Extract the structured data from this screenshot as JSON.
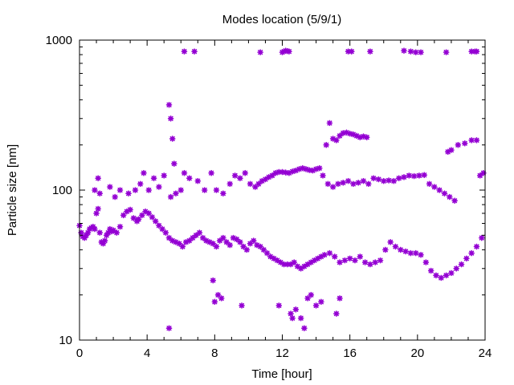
{
  "chart_data": {
    "type": "scatter",
    "title": "Modes location (5/9/1)",
    "xlabel": "Time [hour]",
    "ylabel": "Particle size [nm]",
    "xlim": [
      0,
      24
    ],
    "ylim": [
      10,
      1000
    ],
    "yscale": "log",
    "xticks": [
      0,
      4,
      8,
      12,
      16,
      20,
      24
    ],
    "yticks": [
      10,
      100,
      1000
    ],
    "yticklabels": [
      "10",
      "100",
      "1000"
    ],
    "grid": false,
    "legend": "none",
    "marker": "star",
    "marker_color": "#9400d3",
    "series": [
      {
        "x": [
          0.0,
          0.1,
          0.2,
          0.3,
          0.4,
          0.5,
          0.6,
          0.7,
          0.8,
          0.9,
          1.0,
          1.1,
          1.2,
          1.3,
          1.4,
          1.5,
          1.6,
          1.7,
          1.8,
          1.9,
          2.0,
          2.2,
          2.4,
          2.6,
          2.8,
          3.0,
          3.2,
          3.4,
          3.5,
          3.7,
          3.9,
          4.1,
          4.3,
          4.5,
          4.7,
          4.9,
          5.1,
          5.3,
          5.5,
          5.7,
          5.9,
          6.1,
          6.3,
          6.5,
          6.7,
          6.9,
          7.1,
          7.3,
          7.5,
          7.7,
          7.9,
          8.1,
          8.3,
          8.5,
          8.7,
          8.9,
          9.1,
          9.3,
          9.5,
          9.7,
          9.9,
          10.1,
          10.3,
          10.5,
          10.7,
          10.9,
          11.1,
          11.3,
          11.5,
          11.7,
          11.9,
          12.1,
          12.3,
          12.5,
          12.7,
          12.9,
          13.1,
          13.3,
          13.5,
          13.7,
          13.9,
          14.1,
          14.3,
          14.5,
          14.8,
          15.1,
          15.4,
          15.7,
          16.0,
          16.3,
          16.6,
          16.9,
          17.2,
          17.5,
          17.8,
          18.1,
          18.4,
          18.7,
          19.0,
          19.3,
          19.6,
          19.9,
          20.2,
          20.5,
          20.8,
          21.1,
          21.4,
          21.7,
          22.0,
          22.3,
          22.6,
          22.9,
          23.2,
          23.5,
          23.8
        ],
        "y": [
          58,
          52,
          49,
          48,
          50,
          52,
          55,
          56,
          57,
          55,
          70,
          75,
          52,
          45,
          44,
          46,
          50,
          52,
          55,
          53,
          54,
          52,
          57,
          68,
          72,
          74,
          65,
          62,
          64,
          68,
          72,
          70,
          66,
          62,
          58,
          55,
          52,
          48,
          46,
          45,
          44,
          42,
          45,
          46,
          48,
          50,
          52,
          48,
          46,
          45,
          44,
          42,
          46,
          48,
          45,
          43,
          48,
          47,
          45,
          42,
          40,
          44,
          46,
          43,
          42,
          40,
          38,
          36,
          35,
          34,
          33,
          32,
          32,
          32,
          33,
          31,
          30,
          31,
          32,
          33,
          34,
          35,
          36,
          37,
          38,
          36,
          33,
          34,
          35,
          34,
          36,
          33,
          32,
          33,
          34,
          40,
          45,
          42,
          40,
          39,
          38,
          38,
          37,
          33,
          29,
          27,
          26,
          27,
          28,
          30,
          32,
          35,
          38,
          42,
          48
        ]
      },
      {
        "x": [
          0.9,
          1.1,
          1.2,
          1.8,
          2.1,
          2.4,
          2.9,
          3.3,
          3.6,
          3.8,
          4.1,
          4.4,
          4.7,
          5.0,
          5.4,
          5.7,
          6.0,
          6.2,
          6.5,
          7.0,
          7.4,
          7.8,
          8.1,
          8.5,
          8.9,
          9.2,
          9.5,
          9.8,
          10.1,
          10.4,
          10.6,
          10.8,
          11.0,
          11.2,
          11.4,
          11.6,
          11.8,
          12.0,
          12.2,
          12.4,
          12.6,
          12.8,
          13.0,
          13.2,
          13.4,
          13.6,
          13.8,
          14.0,
          14.2,
          14.4,
          14.7,
          15.0,
          15.3,
          15.6,
          15.9,
          16.2,
          16.5,
          16.8,
          17.1,
          17.4,
          17.7,
          18.0,
          18.3,
          18.6,
          18.9,
          19.2,
          19.5,
          19.8,
          20.1,
          20.4,
          20.7,
          21.0,
          21.3,
          21.6,
          21.9,
          22.2,
          23.7,
          23.9
        ],
        "y": [
          100,
          120,
          95,
          105,
          90,
          100,
          95,
          100,
          110,
          130,
          100,
          120,
          105,
          125,
          90,
          95,
          100,
          130,
          120,
          115,
          100,
          130,
          100,
          95,
          110,
          125,
          120,
          130,
          110,
          105,
          110,
          115,
          118,
          122,
          125,
          130,
          132,
          132,
          131,
          130,
          133,
          135,
          138,
          140,
          138,
          136,
          135,
          138,
          140,
          125,
          110,
          105,
          110,
          112,
          115,
          110,
          112,
          115,
          110,
          120,
          118,
          115,
          116,
          115,
          120,
          122,
          125,
          124,
          125,
          126,
          110,
          105,
          100,
          95,
          90,
          85,
          125,
          130
        ]
      },
      {
        "x": [
          14.6,
          14.8,
          15.0,
          15.2,
          15.4,
          15.6,
          15.8,
          16.0,
          16.2,
          16.4,
          16.6,
          16.8,
          17.0,
          21.8,
          22.0,
          22.4,
          22.8,
          23.2,
          23.5
        ],
        "y": [
          200,
          280,
          220,
          215,
          230,
          240,
          242,
          238,
          235,
          230,
          225,
          228,
          225,
          180,
          185,
          200,
          205,
          215,
          215
        ]
      },
      {
        "x": [
          5.3,
          5.4,
          5.5,
          5.6,
          6.2,
          6.8,
          10.7,
          12.0,
          12.1,
          12.2,
          12.3,
          12.4,
          15.9,
          16.1,
          17.2,
          19.2,
          19.6,
          19.9,
          20.2,
          21.7,
          23.2,
          23.4,
          23.5
        ],
        "y": [
          370,
          300,
          220,
          150,
          840,
          840,
          830,
          830,
          840,
          850,
          845,
          840,
          840,
          840,
          840,
          850,
          840,
          830,
          830,
          830,
          840,
          840,
          840
        ]
      },
      {
        "x": [
          5.3,
          7.9,
          8.0,
          8.2,
          8.4,
          9.6,
          11.8,
          12.5,
          12.6,
          12.8,
          13.1,
          13.3,
          13.5,
          13.7,
          14.0,
          14.3,
          15.2,
          15.4
        ],
        "y": [
          12,
          25,
          18,
          20,
          19,
          17,
          17,
          15,
          14,
          16,
          14,
          12,
          19,
          20,
          17,
          18,
          15,
          19
        ]
      }
    ]
  }
}
